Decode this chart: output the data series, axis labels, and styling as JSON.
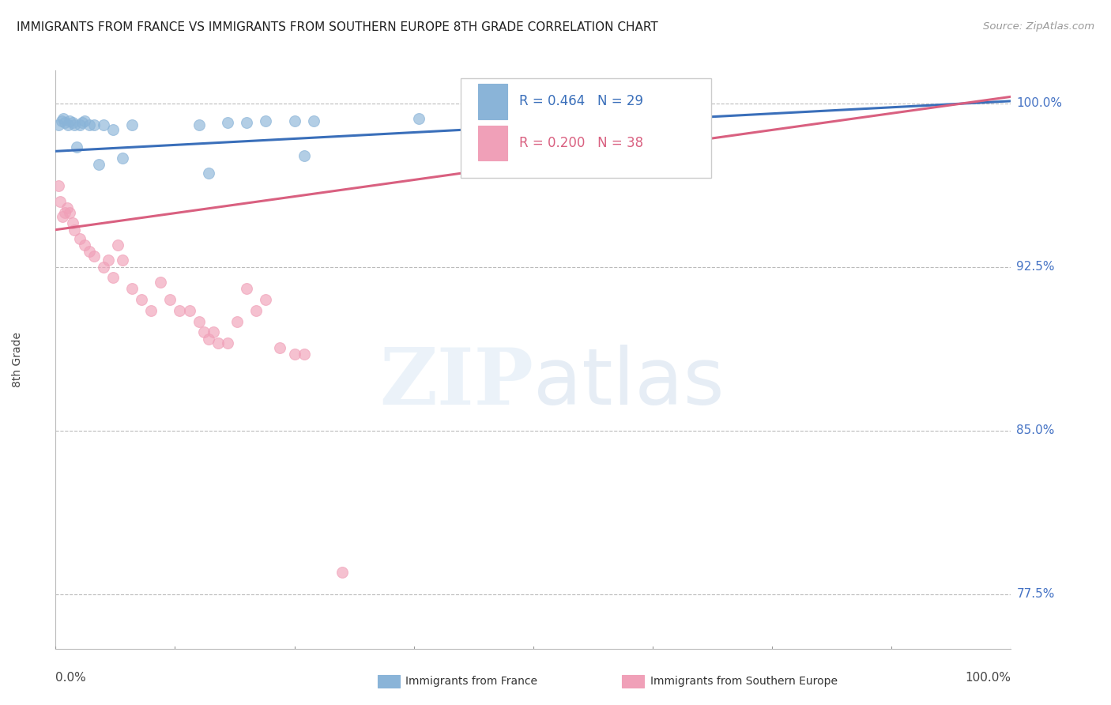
{
  "title": "IMMIGRANTS FROM FRANCE VS IMMIGRANTS FROM SOUTHERN EUROPE 8TH GRADE CORRELATION CHART",
  "source": "Source: ZipAtlas.com",
  "ylabel": "8th Grade",
  "ylabel_color": "#444444",
  "xlim": [
    0,
    100
  ],
  "ylim": [
    75.0,
    101.5
  ],
  "yticks": [
    77.5,
    85.0,
    92.5,
    100.0
  ],
  "ytick_labels": [
    "77.5%",
    "85.0%",
    "92.5%",
    "100.0%"
  ],
  "ytick_color": "#4472c4",
  "xtick_positions": [
    0,
    12.5,
    25,
    37.5,
    50,
    62.5,
    75,
    87.5,
    100
  ],
  "background_color": "#ffffff",
  "grid_color": "#bbbbbb",
  "france_color": "#8ab4d8",
  "france_edge_color": "#8ab4d8",
  "southern_color": "#f0a0b8",
  "southern_edge_color": "#f0a0b8",
  "france_R": 0.464,
  "france_N": 29,
  "southern_R": 0.2,
  "southern_N": 38,
  "france_line_color": "#3a6fba",
  "southern_line_color": "#d96080",
  "legend_france_label": "Immigrants from France",
  "legend_southern_label": "Immigrants from Southern Europe",
  "marker_size": 100,
  "france_x": [
    0.3,
    0.6,
    0.8,
    1.0,
    1.3,
    1.5,
    1.8,
    2.0,
    2.2,
    2.5,
    2.8,
    3.0,
    3.5,
    4.0,
    4.5,
    5.0,
    6.0,
    7.0,
    8.0,
    15.0,
    16.0,
    18.0,
    20.0,
    22.0,
    25.0,
    26.0,
    27.0,
    38.0,
    68.0
  ],
  "france_y": [
    99.0,
    99.2,
    99.3,
    99.1,
    99.0,
    99.2,
    99.1,
    99.0,
    98.0,
    99.0,
    99.1,
    99.2,
    99.0,
    99.0,
    97.2,
    99.0,
    98.8,
    97.5,
    99.0,
    99.0,
    96.8,
    99.1,
    99.1,
    99.2,
    99.2,
    97.6,
    99.2,
    99.3,
    99.5
  ],
  "southern_x": [
    0.3,
    0.5,
    0.7,
    1.0,
    1.2,
    1.5,
    1.8,
    2.0,
    2.5,
    3.0,
    3.5,
    4.0,
    5.0,
    5.5,
    6.0,
    6.5,
    7.0,
    8.0,
    9.0,
    10.0,
    11.0,
    12.0,
    13.0,
    14.0,
    15.0,
    15.5,
    16.0,
    16.5,
    17.0,
    18.0,
    19.0,
    20.0,
    21.0,
    22.0,
    23.5,
    25.0,
    26.0,
    30.0
  ],
  "southern_y": [
    96.2,
    95.5,
    94.8,
    95.0,
    95.2,
    95.0,
    94.5,
    94.2,
    93.8,
    93.5,
    93.2,
    93.0,
    92.5,
    92.8,
    92.0,
    93.5,
    92.8,
    91.5,
    91.0,
    90.5,
    91.8,
    91.0,
    90.5,
    90.5,
    90.0,
    89.5,
    89.2,
    89.5,
    89.0,
    89.0,
    90.0,
    91.5,
    90.5,
    91.0,
    88.8,
    88.5,
    88.5,
    78.5
  ],
  "france_line_x0": 0,
  "france_line_x1": 100,
  "france_line_y0": 97.8,
  "france_line_y1": 100.1,
  "southern_line_x0": 0,
  "southern_line_x1": 100,
  "southern_line_y0": 94.2,
  "southern_line_y1": 100.3
}
